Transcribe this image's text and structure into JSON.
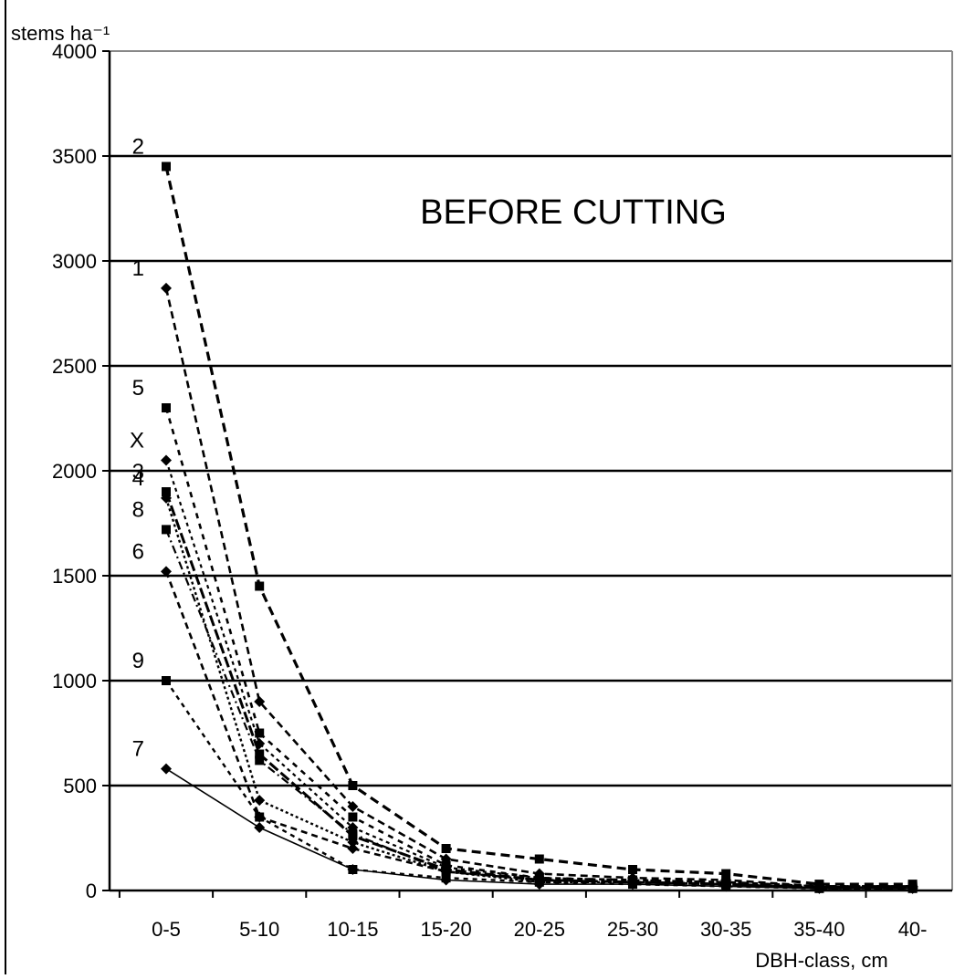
{
  "chart_data": {
    "type": "line",
    "annotation": "BEFORE CUTTING",
    "ylabel": "stems ha⁻¹",
    "xlabel": "DBH-class, cm",
    "categories": [
      "0-5",
      "5-10",
      "10-15",
      "15-20",
      "20-25",
      "25-30",
      "30-35",
      "35-40",
      "40-"
    ],
    "ylim": [
      0,
      4000
    ],
    "yticks": [
      "0",
      "500",
      "1000",
      "1500",
      "2000",
      "2500",
      "3000",
      "3500",
      "4000"
    ],
    "grid": "horizontal",
    "legend": "none",
    "series_label_position": "left of first point",
    "series": [
      {
        "name": "2",
        "values": [
          3450,
          1450,
          500,
          200,
          150,
          100,
          80,
          30,
          30
        ]
      },
      {
        "name": "1",
        "values": [
          2870,
          900,
          400,
          150,
          80,
          60,
          50,
          20,
          20
        ]
      },
      {
        "name": "5",
        "values": [
          2300,
          750,
          350,
          120,
          60,
          50,
          40,
          20,
          20
        ]
      },
      {
        "name": "X",
        "values": [
          2050,
          700,
          300,
          110,
          60,
          50,
          40,
          20,
          20
        ]
      },
      {
        "name": "3",
        "values": [
          1900,
          650,
          260,
          100,
          50,
          40,
          30,
          15,
          15
        ]
      },
      {
        "name": "4",
        "values": [
          1870,
          430,
          230,
          90,
          40,
          40,
          30,
          15,
          15
        ]
      },
      {
        "name": "8",
        "values": [
          1720,
          620,
          270,
          90,
          50,
          40,
          30,
          10,
          10
        ]
      },
      {
        "name": "6",
        "values": [
          1520,
          350,
          200,
          90,
          50,
          40,
          30,
          10,
          10
        ]
      },
      {
        "name": "9",
        "values": [
          1000,
          350,
          100,
          60,
          40,
          30,
          20,
          10,
          10
        ]
      },
      {
        "name": "7",
        "values": [
          580,
          300,
          100,
          50,
          30,
          30,
          20,
          10,
          10
        ]
      }
    ]
  }
}
